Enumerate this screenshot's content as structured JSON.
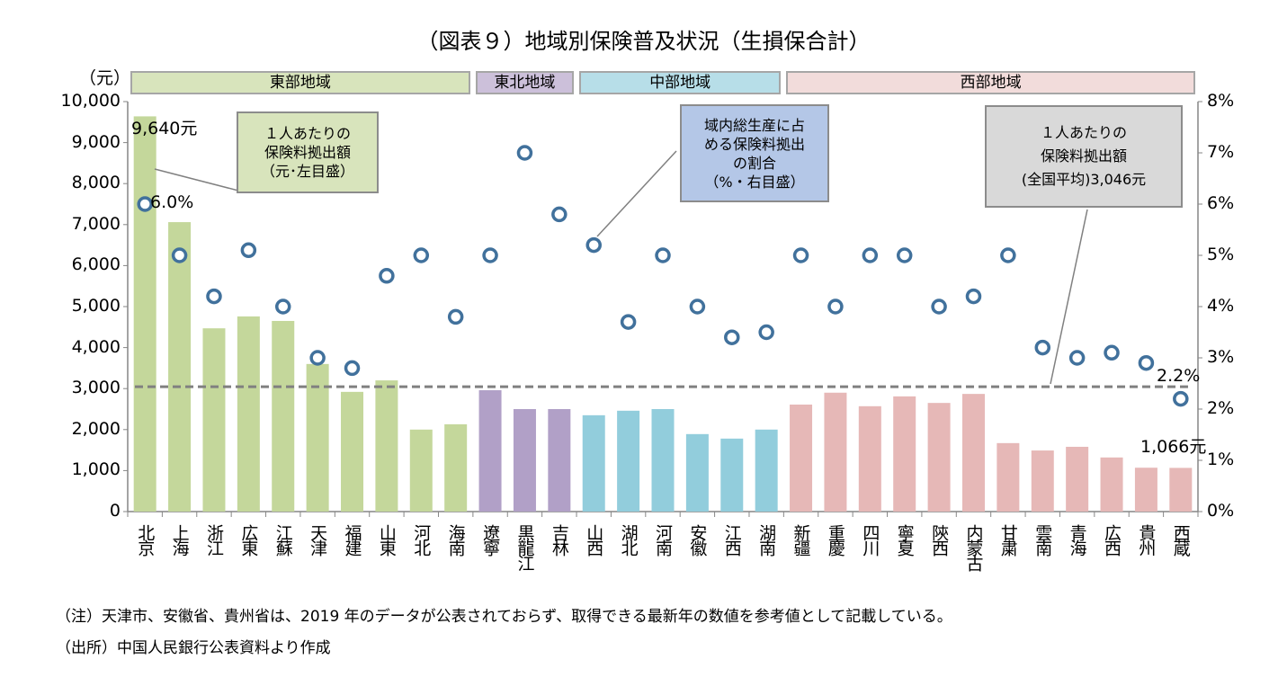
{
  "chart_data": {
    "type": "bar+scatter",
    "title": "（図表９）地域別保険普及状況（生損保合計）",
    "y_left_unit": "（元）",
    "y_left_lim": [
      0,
      10000
    ],
    "y_left_ticks": [
      "0",
      "1,000",
      "2,000",
      "3,000",
      "4,000",
      "5,000",
      "6,000",
      "7,000",
      "8,000",
      "9,000",
      "10,000"
    ],
    "y_right_lim": [
      0,
      8
    ],
    "y_right_ticks": [
      "0%",
      "1%",
      "2%",
      "3%",
      "4%",
      "5%",
      "6%",
      "7%",
      "8%"
    ],
    "grid": false,
    "categories": [
      "北京",
      "上海",
      "浙江",
      "広東",
      "江蘇",
      "天津",
      "福建",
      "山東",
      "河北",
      "海南",
      "遼寧",
      "黒龍江",
      "吉林",
      "山西",
      "湖北",
      "河南",
      "安徽",
      "江西",
      "湖南",
      "新疆",
      "重慶",
      "四川",
      "寧夏",
      "陝西",
      "内蒙古",
      "甘粛",
      "雲南",
      "青海",
      "広西",
      "貴州",
      "西蔵"
    ],
    "regions": [
      {
        "name": "東部地域",
        "start": 0,
        "end": 9,
        "color": "#c4d79b",
        "header_color": "#d8e4bc"
      },
      {
        "name": "東北地域",
        "start": 10,
        "end": 12,
        "color": "#b1a0c7",
        "header_color": "#ccc0da"
      },
      {
        "name": "中部地域",
        "start": 13,
        "end": 18,
        "color": "#92cddc",
        "header_color": "#b7dee8"
      },
      {
        "name": "西部地域",
        "start": 19,
        "end": 30,
        "color": "#e6b8b7",
        "header_color": "#f2dcdb"
      }
    ],
    "series": [
      {
        "name": "1人あたりの保険料拠出額（元・左目盛）",
        "axis": "left",
        "type": "bar",
        "values": [
          9640,
          7060,
          4470,
          4760,
          4650,
          3600,
          2920,
          3200,
          2000,
          2130,
          2960,
          2500,
          2500,
          2350,
          2460,
          2500,
          1890,
          1780,
          2000,
          2610,
          2900,
          2570,
          2810,
          2650,
          2870,
          1670,
          1490,
          1580,
          1320,
          1070,
          1066
        ]
      },
      {
        "name": "域内総生産に占める保険料拠出の割合（%・右目盛）",
        "axis": "right",
        "type": "scatter",
        "color": "#41719c",
        "values": [
          6.0,
          5.0,
          4.2,
          5.1,
          4.0,
          3.0,
          2.8,
          4.6,
          5.0,
          3.8,
          5.0,
          7.0,
          5.8,
          5.2,
          3.7,
          5.0,
          4.0,
          3.4,
          3.5,
          5.0,
          4.0,
          5.0,
          5.0,
          4.0,
          4.2,
          5.0,
          3.2,
          3.0,
          3.1,
          2.9,
          2.2
        ]
      },
      {
        "name": "1人あたりの保険料拠出額(全国平均)3,046元",
        "axis": "left",
        "type": "hline",
        "value": 3046,
        "color": "#808080"
      }
    ],
    "data_labels": {
      "max_bar": "9,640元",
      "max_pct": "6.0%",
      "min_bar": "1,066元",
      "min_pct": "2.2%"
    },
    "callouts": {
      "bar": [
        "１人あたりの",
        "保険料拠出額",
        "（元･左目盛）"
      ],
      "pct": [
        "域内総生産に占",
        "める保険料拠出",
        "の割合",
        "（%・右目盛）"
      ],
      "avg": [
        "１人あたりの",
        "保険料拠出額",
        "(全国平均)3,046元"
      ]
    }
  },
  "notes": [
    "（注）天津市、安徽省、貴州省は、2019 年のデータが公表されておらず、取得できる最新年の数値を参考値として記載している。",
    "（出所）中国人民銀行公表資料より作成"
  ]
}
